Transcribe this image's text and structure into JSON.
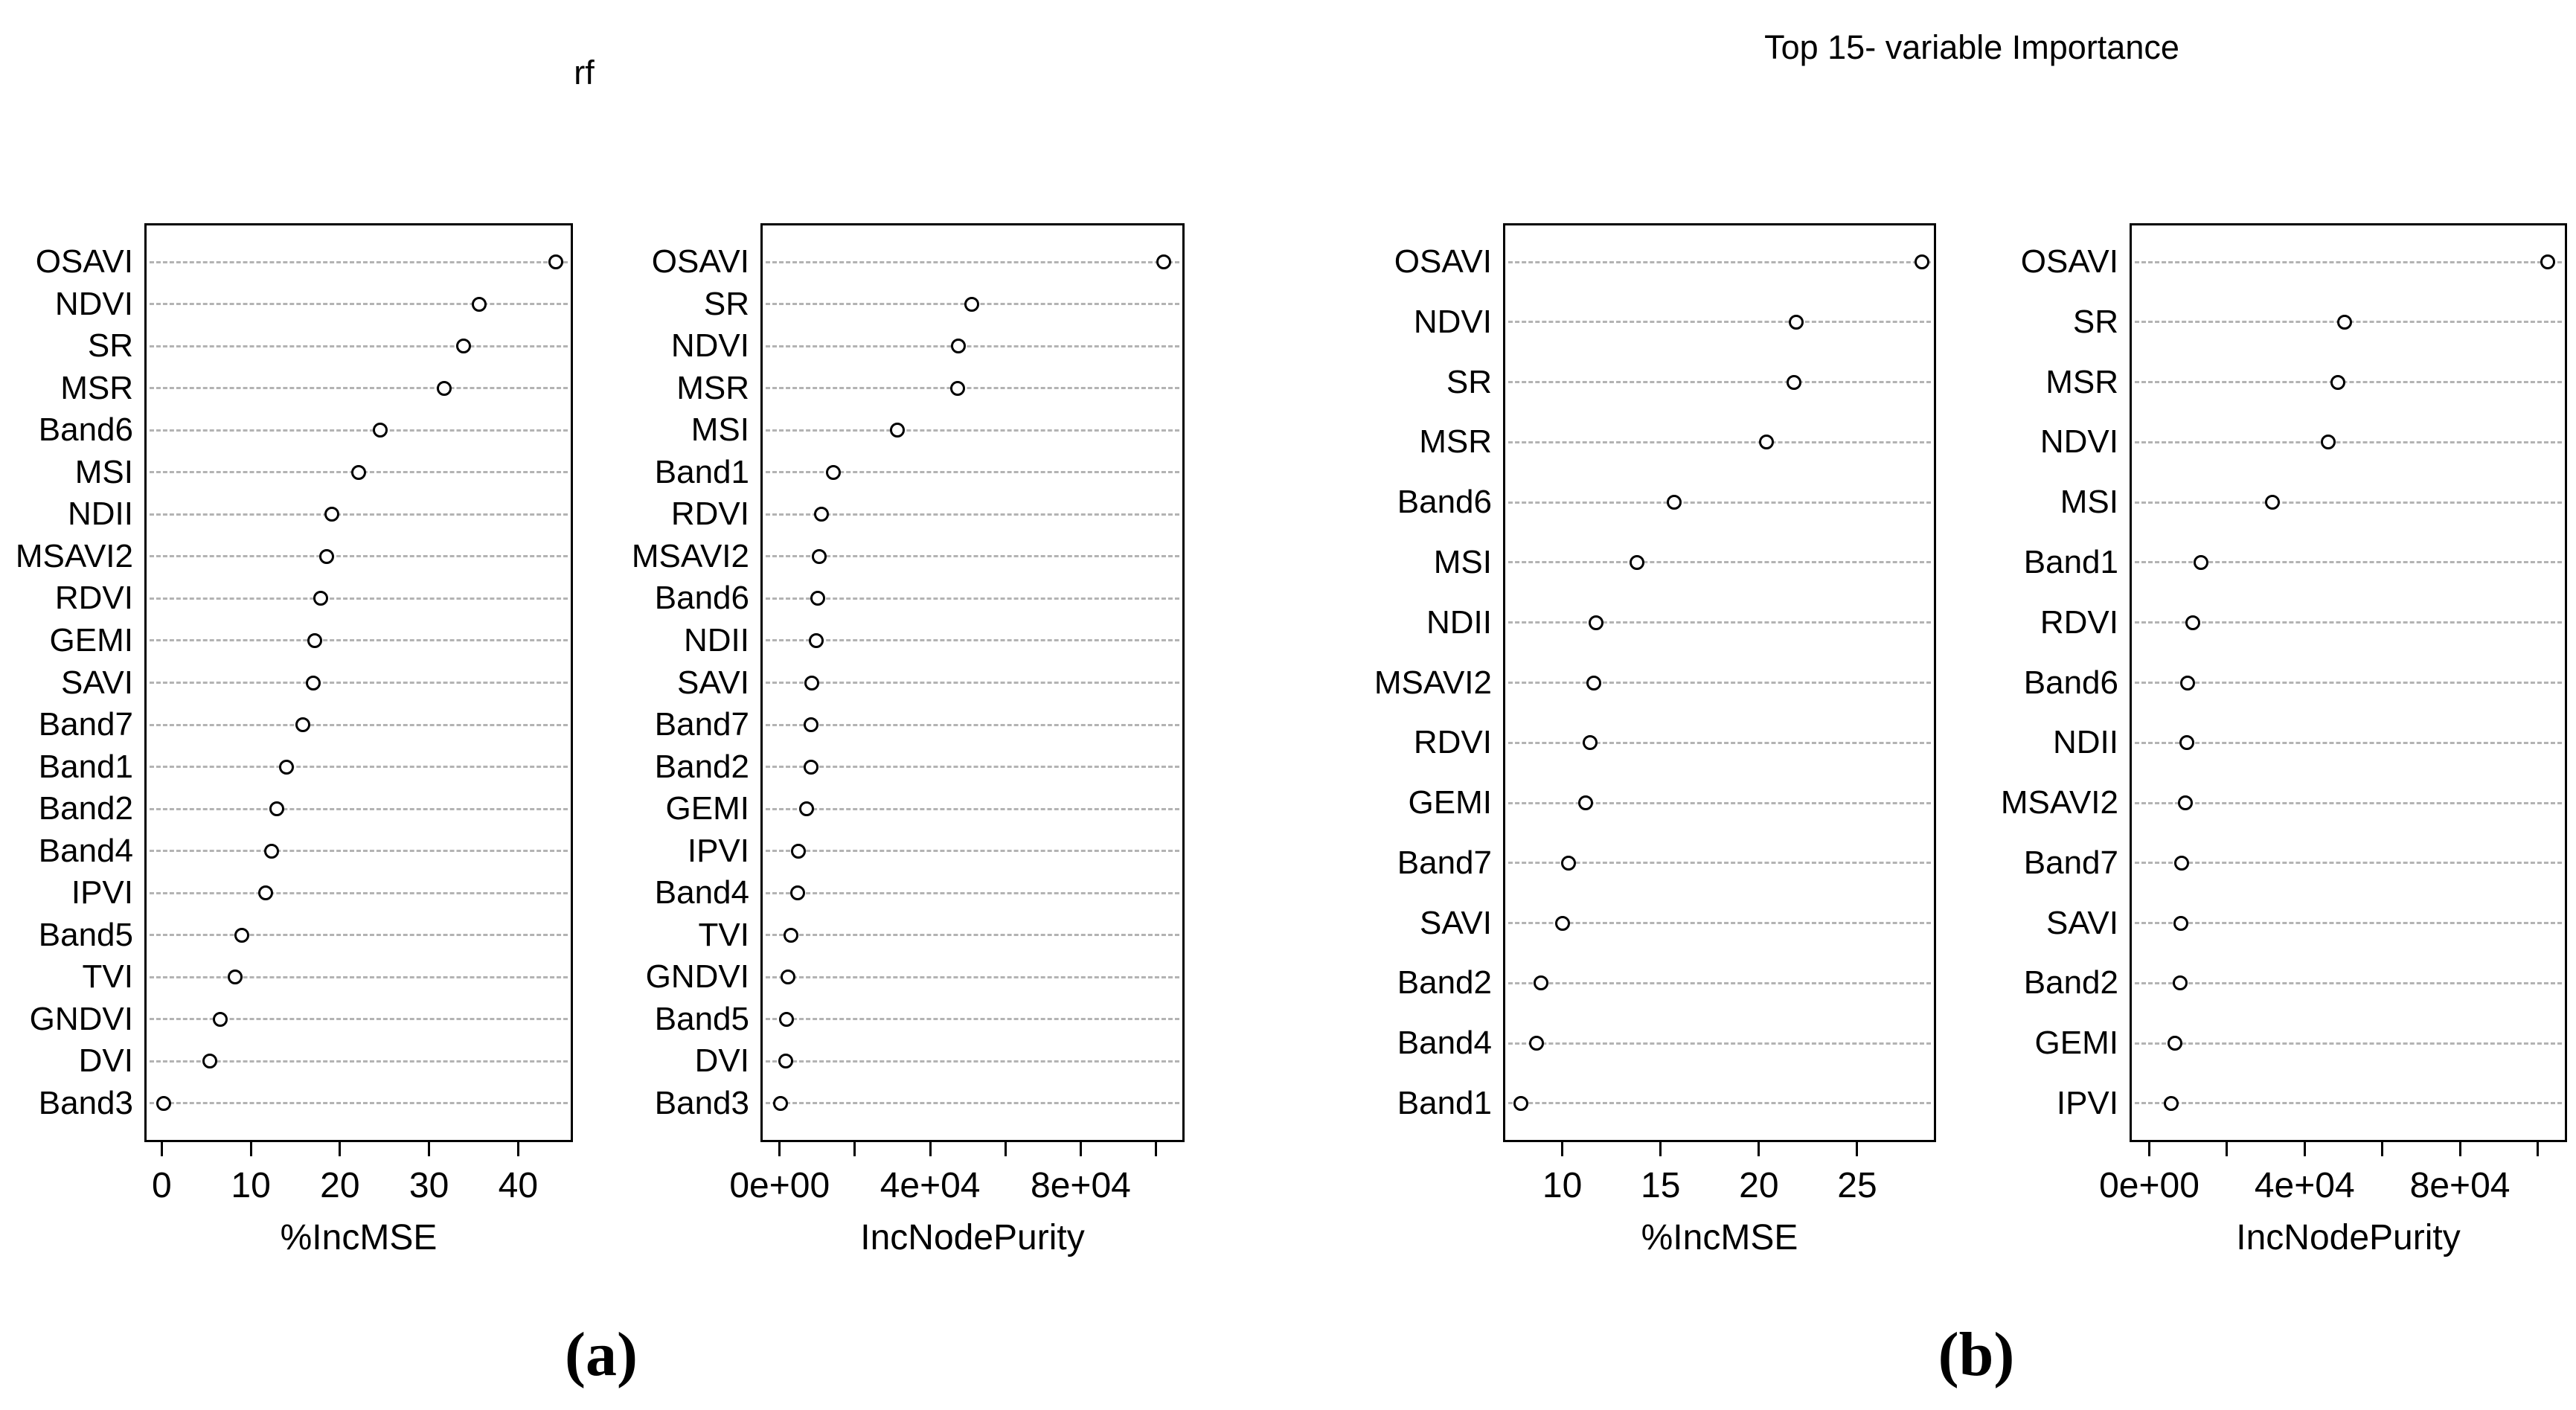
{
  "colors": {
    "background": "#ffffff",
    "box_line": "#000000",
    "gridline": "#b3b3b3",
    "dot_stroke": "#000000",
    "text": "#000000"
  },
  "panels": {
    "a": {
      "title": "rf",
      "caption": "(a)"
    },
    "b": {
      "title": "Top 15- variable Importance",
      "caption": "(b)"
    }
  },
  "chart_data": [
    {
      "id": "panel-a-incmse",
      "panel": "a",
      "type": "scatter",
      "variant": "dot-plot",
      "xlabel": "%IncMSE",
      "grid": "dashed-horizontal",
      "legend": "none",
      "xlim": [
        -1.7,
        45.9
      ],
      "ticks": [
        {
          "v": 0,
          "label": "0"
        },
        {
          "v": 10,
          "label": "10"
        },
        {
          "v": 20,
          "label": "20"
        },
        {
          "v": 30,
          "label": "30"
        },
        {
          "v": 40,
          "label": "40"
        }
      ],
      "categories": [
        "OSAVI",
        "NDVI",
        "SR",
        "MSR",
        "Band6",
        "MSI",
        "NDII",
        "MSAVI2",
        "RDVI",
        "GEMI",
        "SAVI",
        "Band7",
        "Band1",
        "Band2",
        "Band4",
        "IPVI",
        "Band5",
        "TVI",
        "GNDVI",
        "DVI",
        "Band3"
      ],
      "values": [
        44.2,
        35.6,
        33.9,
        31.7,
        24.5,
        22.1,
        19.1,
        18.5,
        17.8,
        17.2,
        17.0,
        15.8,
        14.0,
        12.9,
        12.3,
        11.7,
        9.0,
        8.2,
        6.6,
        5.4,
        0.2
      ]
    },
    {
      "id": "panel-a-incnodepurity",
      "panel": "a",
      "type": "scatter",
      "variant": "dot-plot",
      "xlabel": "IncNodePurity",
      "grid": "dashed-horizontal",
      "legend": "none",
      "xlim": [
        -4500,
        107000
      ],
      "ticks": [
        {
          "v": 0,
          "label": "0e+00"
        },
        {
          "v": 20000,
          "label": ""
        },
        {
          "v": 40000,
          "label": "4e+04"
        },
        {
          "v": 60000,
          "label": ""
        },
        {
          "v": 80000,
          "label": "8e+04"
        },
        {
          "v": 100000,
          "label": ""
        }
      ],
      "categories": [
        "OSAVI",
        "SR",
        "NDVI",
        "MSR",
        "MSI",
        "Band1",
        "RDVI",
        "MSAVI2",
        "Band6",
        "NDII",
        "SAVI",
        "Band7",
        "Band2",
        "GEMI",
        "IPVI",
        "Band4",
        "TVI",
        "GNDVI",
        "Band5",
        "DVI",
        "Band3"
      ],
      "values": [
        102000,
        51000,
        47500,
        47200,
        31200,
        14200,
        11200,
        10600,
        10200,
        9700,
        8600,
        8400,
        8300,
        7100,
        5000,
        4800,
        3100,
        2300,
        1900,
        1700,
        200
      ]
    },
    {
      "id": "panel-b-incmse",
      "panel": "b",
      "type": "scatter",
      "variant": "dot-plot",
      "xlabel": "%IncMSE",
      "grid": "dashed-horizontal",
      "legend": "none",
      "xlim": [
        7.1,
        28.9
      ],
      "ticks": [
        {
          "v": 10,
          "label": "10"
        },
        {
          "v": 15,
          "label": "15"
        },
        {
          "v": 20,
          "label": "20"
        },
        {
          "v": 25,
          "label": "25"
        }
      ],
      "categories": [
        "OSAVI",
        "NDVI",
        "SR",
        "MSR",
        "Band6",
        "MSI",
        "NDII",
        "MSAVI2",
        "RDVI",
        "GEMI",
        "Band7",
        "SAVI",
        "Band2",
        "Band4",
        "Band1"
      ],
      "values": [
        28.3,
        21.9,
        21.8,
        20.4,
        15.7,
        13.8,
        11.7,
        11.6,
        11.4,
        11.2,
        10.3,
        10.0,
        8.9,
        8.7,
        7.9
      ]
    },
    {
      "id": "panel-b-incnodepurity",
      "panel": "b",
      "type": "scatter",
      "variant": "dot-plot",
      "xlabel": "IncNodePurity",
      "grid": "dashed-horizontal",
      "legend": "none",
      "xlim": [
        -4500,
        107000
      ],
      "ticks": [
        {
          "v": 0,
          "label": "0e+00"
        },
        {
          "v": 20000,
          "label": ""
        },
        {
          "v": 40000,
          "label": "4e+04"
        },
        {
          "v": 60000,
          "label": ""
        },
        {
          "v": 80000,
          "label": "8e+04"
        },
        {
          "v": 100000,
          "label": ""
        }
      ],
      "categories": [
        "OSAVI",
        "SR",
        "MSR",
        "NDVI",
        "MSI",
        "Band1",
        "RDVI",
        "Band6",
        "NDII",
        "MSAVI2",
        "Band7",
        "SAVI",
        "Band2",
        "GEMI",
        "IPVI"
      ],
      "values": [
        102500,
        50300,
        48500,
        46100,
        31700,
        13300,
        11300,
        9800,
        9600,
        9200,
        8300,
        8100,
        7900,
        6600,
        5600
      ]
    }
  ]
}
